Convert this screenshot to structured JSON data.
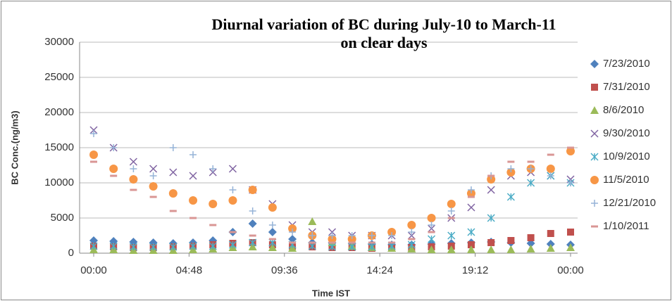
{
  "chart_data": {
    "type": "scatter",
    "title": "Diurnal variation of BC during July-10 to March-11 on clear days",
    "x_label": "Time IST",
    "y_label": "BC Conc.(ng/m3)",
    "xlim": [
      0,
      24
    ],
    "ylim": [
      0,
      30000
    ],
    "xticks": [
      {
        "value": 0,
        "label": "00:00"
      },
      {
        "value": 4.8,
        "label": "04:48"
      },
      {
        "value": 9.6,
        "label": "09:36"
      },
      {
        "value": 14.4,
        "label": "14:24"
      },
      {
        "value": 19.2,
        "label": "19:12"
      },
      {
        "value": 24,
        "label": "00:00"
      }
    ],
    "yticks": [
      0,
      5000,
      10000,
      15000,
      20000,
      25000,
      30000
    ],
    "grid": true,
    "legend": "right",
    "x": [
      0,
      1,
      2,
      3,
      4,
      5,
      6,
      7,
      8,
      9,
      10,
      11,
      12,
      13,
      14,
      15,
      16,
      17,
      18,
      19,
      20,
      21,
      22,
      23,
      24
    ],
    "series": [
      {
        "name": "7/23/2010",
        "color": "#4f81bd",
        "marker": "diamond",
        "values": [
          1800,
          1700,
          1600,
          1500,
          1400,
          1500,
          1800,
          3000,
          4200,
          3000,
          2000,
          1500,
          1500,
          1400,
          1300,
          1200,
          1200,
          1300,
          1400,
          1500,
          1600,
          1500,
          1400,
          1300,
          1200
        ]
      },
      {
        "name": "7/31/2010",
        "color": "#c0504d",
        "marker": "square",
        "values": [
          1000,
          900,
          800,
          800,
          900,
          1000,
          1200,
          1400,
          1500,
          1200,
          1000,
          900,
          800,
          800,
          700,
          700,
          800,
          900,
          1000,
          1200,
          1500,
          1800,
          2200,
          2800,
          3000
        ]
      },
      {
        "name": "8/6/2010",
        "color": "#9bbb59",
        "marker": "triangle",
        "values": [
          500,
          500,
          400,
          400,
          400,
          500,
          600,
          800,
          900,
          800,
          700,
          4500,
          1500,
          1000,
          800,
          700,
          600,
          500,
          500,
          500,
          500,
          500,
          600,
          700,
          800
        ]
      },
      {
        "name": "9/30/2010",
        "color": "#8064a2",
        "marker": "x",
        "values": [
          17500,
          15000,
          13000,
          12000,
          11500,
          11000,
          11500,
          12000,
          9000,
          7000,
          4000,
          3000,
          3000,
          2500,
          2500,
          2500,
          2500,
          3500,
          5000,
          6500,
          9000,
          11000,
          11500,
          11000,
          10500
        ]
      },
      {
        "name": "10/9/2010",
        "color": "#4bacc6",
        "marker": "star",
        "values": [
          1000,
          1000,
          900,
          900,
          900,
          1000,
          1000,
          1200,
          1500,
          1500,
          1200,
          1000,
          900,
          900,
          900,
          1000,
          1200,
          2000,
          2500,
          3000,
          5000,
          8000,
          10000,
          11000,
          10000
        ]
      },
      {
        "name": "11/5/2010",
        "color": "#f79646",
        "marker": "circle",
        "values": [
          14000,
          12000,
          10500,
          9500,
          8500,
          7500,
          7000,
          7500,
          9000,
          6500,
          3500,
          2500,
          2000,
          2000,
          2500,
          3000,
          4000,
          5000,
          7000,
          8500,
          10500,
          11500,
          12000,
          12000,
          14500
        ]
      },
      {
        "name": "12/21/2010",
        "color": "#95b3d7",
        "marker": "plus",
        "values": [
          17000,
          15000,
          12000,
          11000,
          15000,
          14000,
          12000,
          9000,
          6000,
          4000,
          3000,
          2500,
          2500,
          2500,
          2500,
          2500,
          3000,
          4000,
          6000,
          9000,
          11000,
          12000,
          12000,
          11000,
          10000
        ]
      },
      {
        "name": "1/10/2011",
        "color": "#d99694",
        "marker": "dash",
        "values": [
          13000,
          11000,
          9000,
          8000,
          6000,
          5000,
          4000,
          3000,
          2500,
          2000,
          1500,
          1500,
          1500,
          1500,
          1500,
          1500,
          2000,
          3000,
          5000,
          8000,
          11000,
          13000,
          13000,
          14000,
          15000
        ]
      }
    ]
  }
}
